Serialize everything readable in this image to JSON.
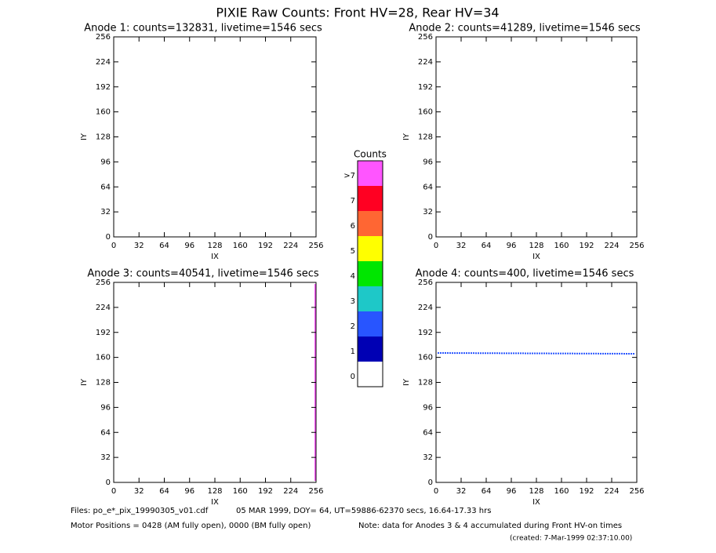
{
  "title": "PIXIE Raw Counts:  Front HV=28, Rear HV=34",
  "panels": [
    {
      "title": "Anode 1: counts=132831, livetime=1546 secs",
      "xlabel": "IX",
      "ylabel": "IY",
      "xlim": [
        0,
        256
      ],
      "ylim": [
        0,
        256
      ],
      "xticks": [
        0,
        32,
        64,
        96,
        128,
        160,
        192,
        224,
        256
      ],
      "yticks": [
        0,
        32,
        64,
        96,
        128,
        160,
        192,
        224,
        256
      ]
    },
    {
      "title": "Anode 2: counts=41289, livetime=1546 secs",
      "xlabel": "IX",
      "ylabel": "IY",
      "xlim": [
        0,
        256
      ],
      "ylim": [
        0,
        256
      ],
      "xticks": [
        0,
        32,
        64,
        96,
        128,
        160,
        192,
        224,
        256
      ],
      "yticks": [
        0,
        32,
        64,
        96,
        128,
        160,
        192,
        224,
        256
      ]
    },
    {
      "title": "Anode 3: counts=40541, livetime=1546 secs",
      "xlabel": "IX",
      "ylabel": "IY",
      "xlim": [
        0,
        256
      ],
      "ylim": [
        0,
        256
      ],
      "xticks": [
        0,
        32,
        64,
        96,
        128,
        160,
        192,
        224,
        256
      ],
      "yticks": [
        0,
        32,
        64,
        96,
        128,
        160,
        192,
        224,
        256
      ]
    },
    {
      "title": "Anode 4: counts=400, livetime=1546 secs",
      "xlabel": "IX",
      "ylabel": "IY",
      "xlim": [
        0,
        256
      ],
      "ylim": [
        0,
        256
      ],
      "xticks": [
        0,
        32,
        64,
        96,
        128,
        160,
        192,
        224,
        256
      ],
      "yticks": [
        0,
        32,
        64,
        96,
        128,
        160,
        192,
        224,
        256
      ]
    }
  ],
  "colorbar": {
    "title": "Counts",
    "levels": [
      {
        "label": "0",
        "color": "#ffffff"
      },
      {
        "label": "1",
        "color": "#0000b4"
      },
      {
        "label": "2",
        "color": "#2855ff"
      },
      {
        "label": "3",
        "color": "#1ec8c8"
      },
      {
        "label": "4",
        "color": "#00e600"
      },
      {
        "label": "5",
        "color": "#ffff00"
      },
      {
        "label": "6",
        "color": "#ff6633"
      },
      {
        "label": "7",
        "color": "#ff0022"
      },
      {
        "label": ">7",
        "color": "#ff55ff"
      }
    ]
  },
  "footer": {
    "files": "Files: po_e*_pix_19990305_v01.cdf",
    "date": "05 MAR 1999, DOY= 64, UT=59886-62370 secs, 16.64-17.33 hrs",
    "motor": "Motor Positions = 0428 (AM fully open), 0000 (BM fully open)",
    "note": "Note: data for Anodes 3 & 4 accumulated during Front HV-on times",
    "created": "(created:  7-Mar-1999 02:37:10.00)"
  }
}
